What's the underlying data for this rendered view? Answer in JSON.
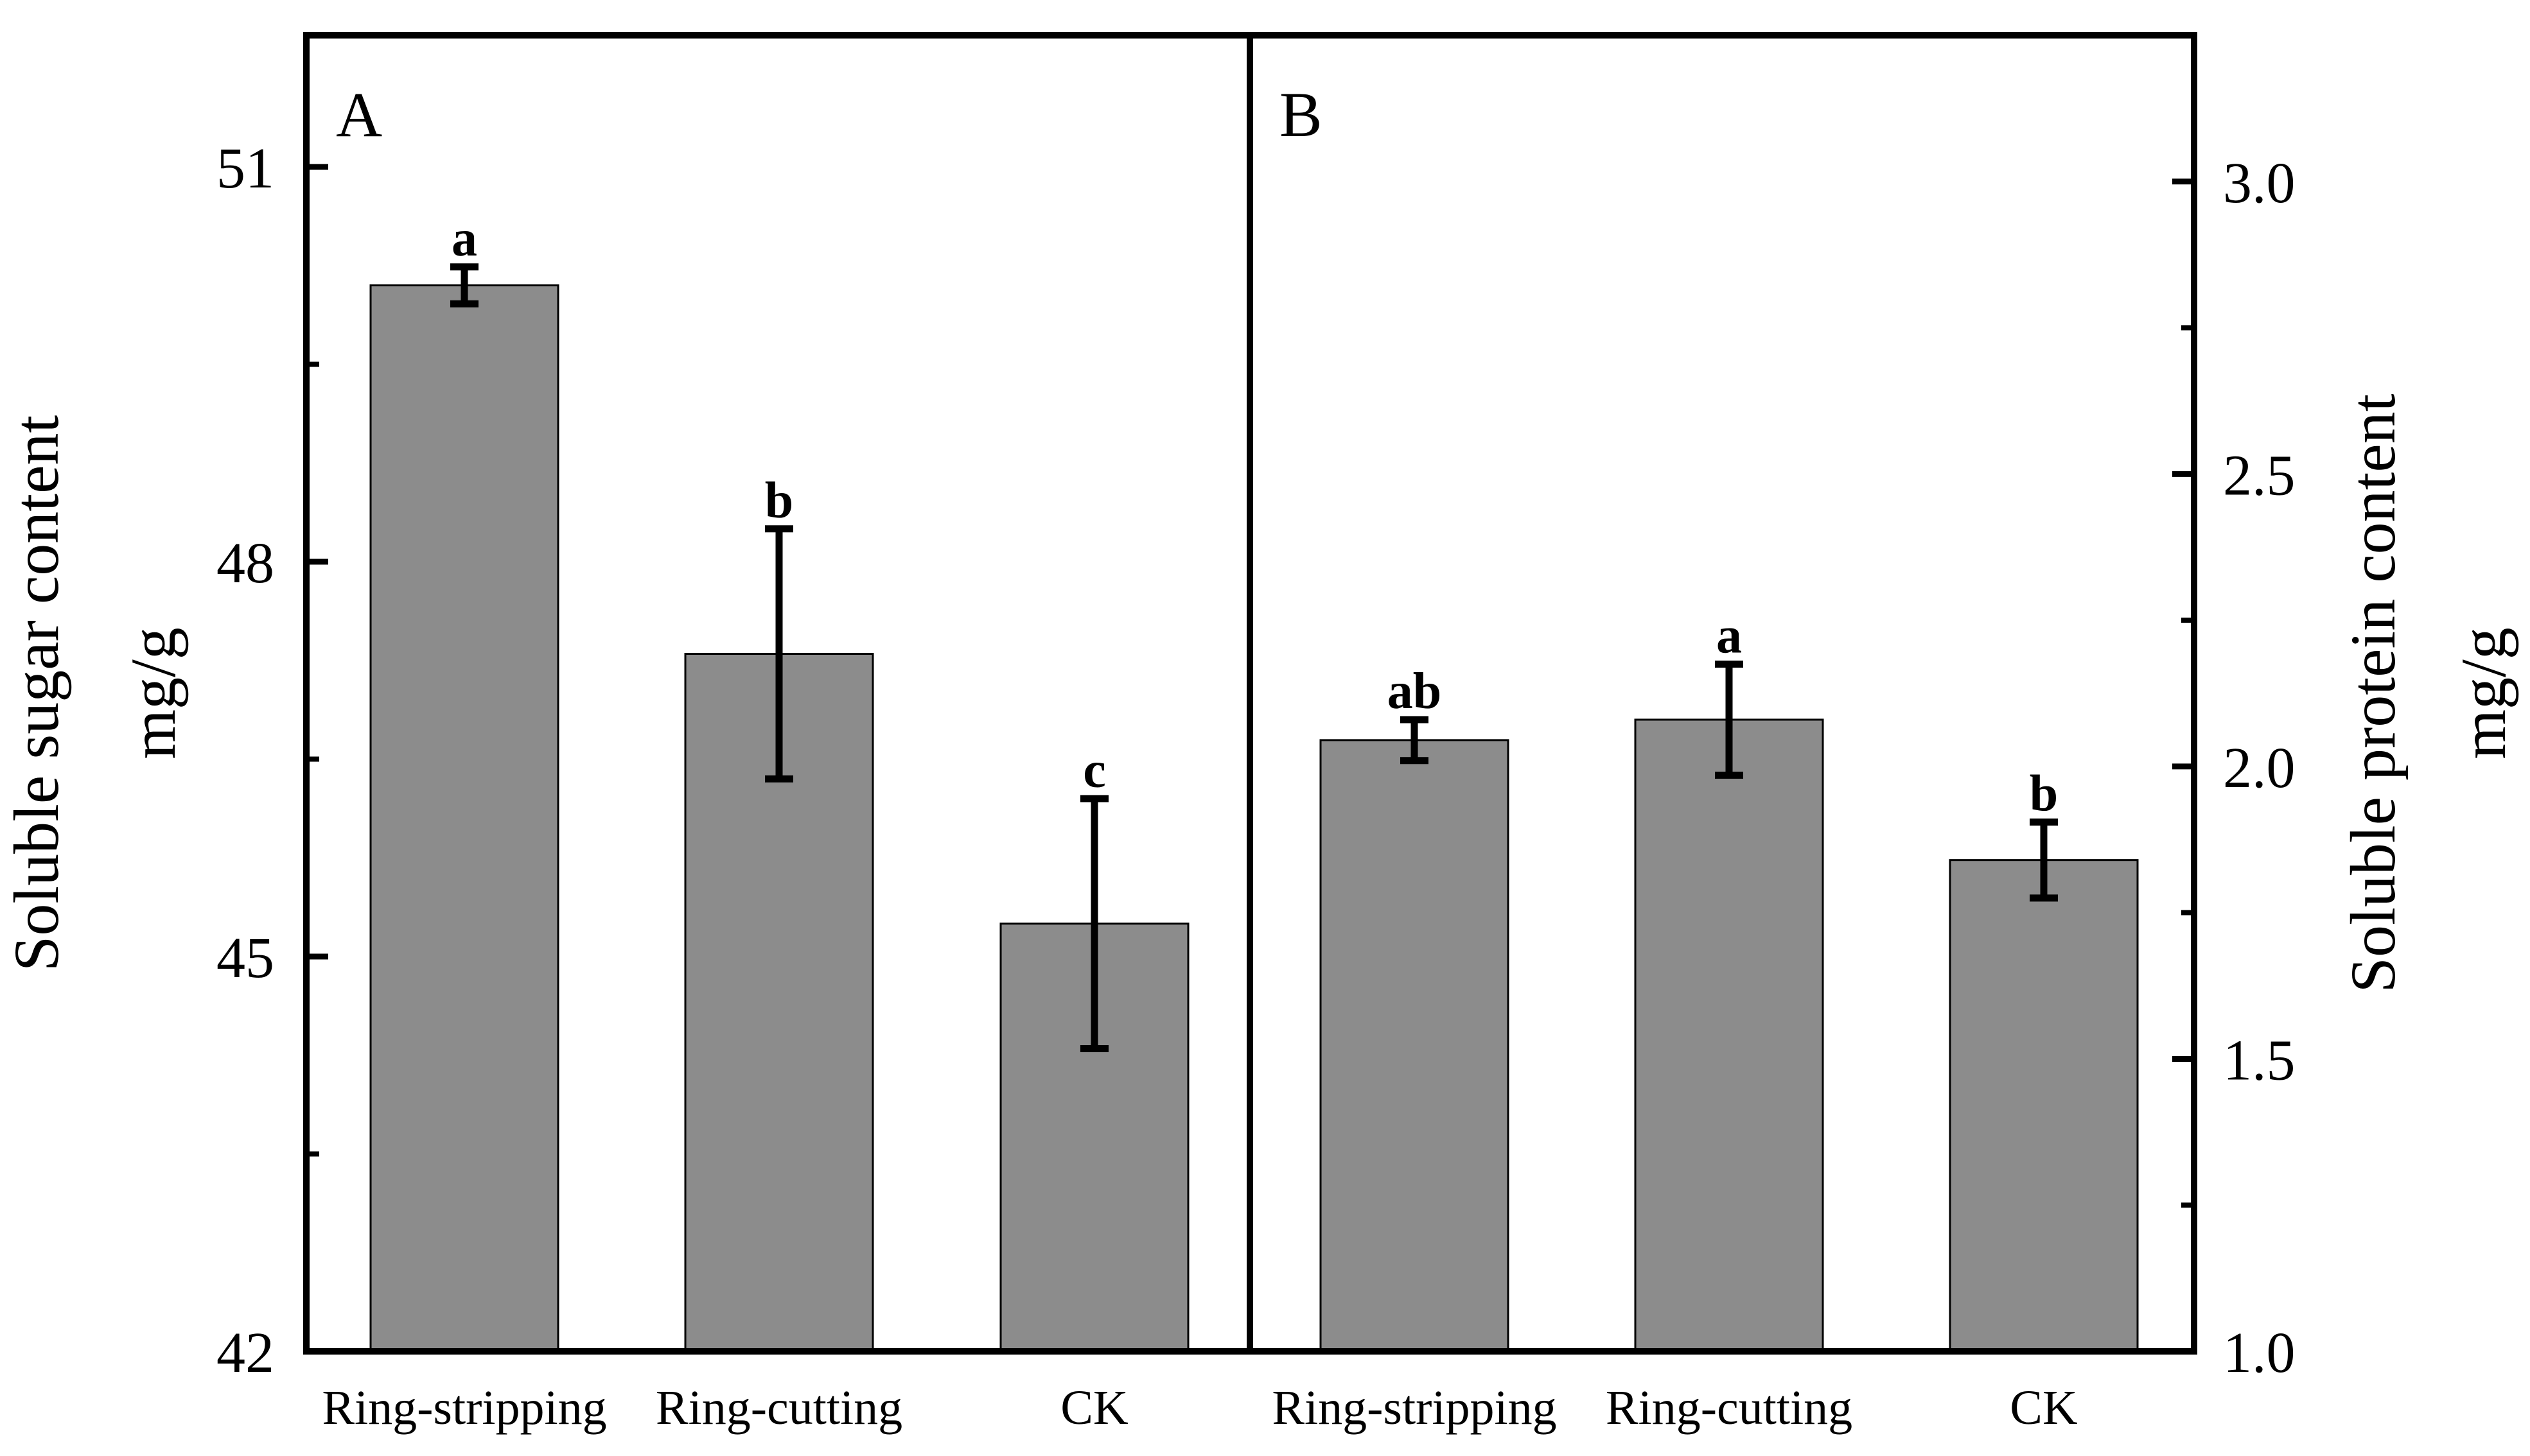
{
  "chart_data": [
    {
      "panel": "A",
      "type": "bar",
      "categories": [
        "Ring-stripping",
        "Ring-cutting",
        "CK"
      ],
      "values": [
        50.1,
        47.3,
        45.25
      ],
      "errors": [
        0.14,
        0.95,
        0.95
      ],
      "significance": [
        "a",
        "b",
        "c"
      ],
      "ylabel": "Soluble sugar content",
      "yunit": "mg/g",
      "ylim": [
        42,
        52
      ],
      "yticks": [
        42,
        45,
        48,
        51
      ],
      "yticks_minor": [
        43.5,
        46.5,
        49.5
      ],
      "axis_side": "left",
      "bar_color": "#8c8c8c"
    },
    {
      "panel": "B",
      "type": "bar",
      "categories": [
        "Ring-stripping",
        "Ring-cutting",
        "CK"
      ],
      "values": [
        2.045,
        2.08,
        1.84
      ],
      "errors": [
        0.035,
        0.095,
        0.065
      ],
      "significance": [
        "ab",
        "a",
        "b"
      ],
      "ylabel": "Soluble protein content",
      "yunit": "mg/g",
      "ylim": [
        1.0,
        3.25
      ],
      "yticks": [
        1.0,
        1.5,
        2.0,
        2.5,
        3.0
      ],
      "yticks_minor": [
        1.25,
        1.75,
        2.25,
        2.75
      ],
      "axis_side": "right",
      "bar_color": "#8c8c8c"
    }
  ]
}
